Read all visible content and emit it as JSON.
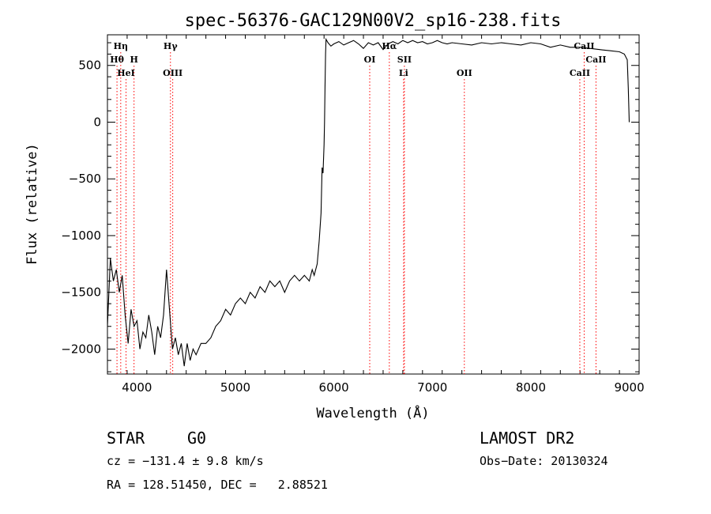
{
  "chart_data": {
    "type": "line",
    "title": "spec-56376-GAC129N00V2_sp16-238.fits",
    "xlabel": "Wavelength (Å)",
    "ylabel": "Flux (relative)",
    "xlim": [
      3700,
      9100
    ],
    "ylim": [
      -2220,
      770
    ],
    "x_ticks": [
      4000,
      5000,
      6000,
      7000,
      8000,
      9000
    ],
    "y_ticks": [
      -2000,
      -1500,
      -1000,
      -500,
      0,
      500
    ],
    "grid": false,
    "line_color": "#000000",
    "marker_color": "#ff0000",
    "spectrum": {
      "x": [
        3700,
        3730,
        3760,
        3790,
        3820,
        3850,
        3880,
        3910,
        3940,
        3970,
        4000,
        4030,
        4060,
        4090,
        4120,
        4150,
        4180,
        4210,
        4240,
        4270,
        4300,
        4330,
        4360,
        4390,
        4420,
        4450,
        4480,
        4510,
        4540,
        4570,
        4600,
        4650,
        4700,
        4750,
        4800,
        4850,
        4900,
        4950,
        5000,
        5050,
        5100,
        5150,
        5200,
        5250,
        5300,
        5350,
        5400,
        5450,
        5500,
        5550,
        5600,
        5650,
        5700,
        5750,
        5780,
        5800,
        5830,
        5850,
        5870,
        5880,
        5890,
        5900,
        5905,
        5910,
        5915,
        5920,
        5940,
        5970,
        6000,
        6050,
        6100,
        6150,
        6200,
        6250,
        6300,
        6350,
        6400,
        6450,
        6500,
        6550,
        6600,
        6650,
        6700,
        6750,
        6800,
        6850,
        6900,
        6950,
        7000,
        7050,
        7100,
        7150,
        7200,
        7300,
        7400,
        7500,
        7600,
        7700,
        7800,
        7900,
        8000,
        8100,
        8200,
        8300,
        8400,
        8500,
        8600,
        8700,
        8800,
        8900,
        8950,
        8980,
        8990,
        9000
      ],
      "y": [
        -1800,
        -1200,
        -1400,
        -1300,
        -1500,
        -1350,
        -1700,
        -1950,
        -1650,
        -1800,
        -1750,
        -2000,
        -1850,
        -1900,
        -1700,
        -1850,
        -2050,
        -1800,
        -1900,
        -1700,
        -1300,
        -1650,
        -2000,
        -1900,
        -2050,
        -1950,
        -2150,
        -1950,
        -2100,
        -2000,
        -2050,
        -1950,
        -1950,
        -1900,
        -1800,
        -1750,
        -1650,
        -1700,
        -1600,
        -1550,
        -1600,
        -1500,
        -1550,
        -1450,
        -1500,
        -1400,
        -1450,
        -1400,
        -1500,
        -1400,
        -1350,
        -1400,
        -1350,
        -1400,
        -1300,
        -1350,
        -1250,
        -1050,
        -800,
        -400,
        -450,
        -200,
        0,
        300,
        600,
        730,
        700,
        670,
        690,
        710,
        680,
        700,
        720,
        690,
        650,
        700,
        680,
        700,
        640,
        690,
        710,
        690,
        720,
        700,
        720,
        700,
        710,
        690,
        700,
        720,
        700,
        690,
        700,
        690,
        680,
        700,
        690,
        700,
        690,
        680,
        700,
        690,
        660,
        680,
        660,
        660,
        650,
        640,
        630,
        620,
        600,
        550,
        300,
        0
      ]
    },
    "lines": [
      {
        "name": "Hη",
        "x": 3835,
        "row": 1
      },
      {
        "name": "Hθ",
        "x": 3797,
        "row": 2
      },
      {
        "name": "H",
        "x": 3970,
        "row": 2
      },
      {
        "name": "HeI",
        "x": 3889,
        "row": 3
      },
      {
        "name": "Hγ",
        "x": 4340,
        "row": 1
      },
      {
        "name": "OIII",
        "x": 4363,
        "row": 3
      },
      {
        "name": "OI",
        "x": 6364,
        "row": 2
      },
      {
        "name": "Hα",
        "x": 6563,
        "row": 1
      },
      {
        "name": "SII",
        "x": 6716,
        "row": 2
      },
      {
        "name": "Li",
        "x": 6708,
        "row": 3
      },
      {
        "name": "OII",
        "x": 7325,
        "row": 3
      },
      {
        "name": "CaII",
        "x": 8542,
        "row": 1
      },
      {
        "name": "CaII",
        "x": 8662,
        "row": 2
      },
      {
        "name": "CaII",
        "x": 8498,
        "row": 3
      }
    ]
  },
  "info": {
    "object_class": "STAR",
    "subclass": "G0",
    "cz": "cz = −131.4 ± 9.8 km/s",
    "radec": "RA = 128.51450, DEC =   2.88521",
    "survey": "LAMOST DR2",
    "obs_date": "Obs−Date: 20130324"
  }
}
